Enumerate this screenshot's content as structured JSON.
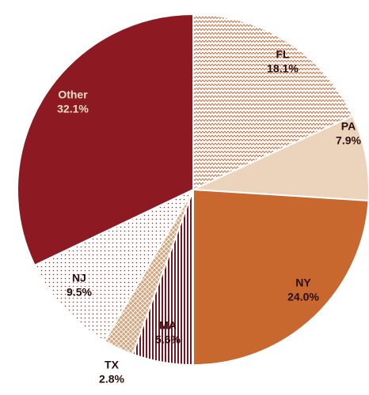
{
  "chart_data": {
    "type": "pie",
    "categories": [
      "FL",
      "PA",
      "NY",
      "MA",
      "TX",
      "NJ",
      "Other"
    ],
    "values": [
      18.1,
      7.9,
      24.0,
      5.6,
      2.8,
      9.5,
      32.1
    ],
    "value_labels": [
      "18.1%",
      "7.9%",
      "24.0%",
      "5.6%",
      "2.8%",
      "9.5%",
      "32.1%"
    ],
    "colors": [
      "#c8693a",
      "#ecd4bc",
      "#c8682e",
      "#7a1420",
      "#d6a47c",
      "#9a2a2a",
      "#8d1a22"
    ],
    "patterns": [
      "zigzag",
      "solid",
      "solid",
      "stripes",
      "crosshatch",
      "dots",
      "solid"
    ]
  }
}
